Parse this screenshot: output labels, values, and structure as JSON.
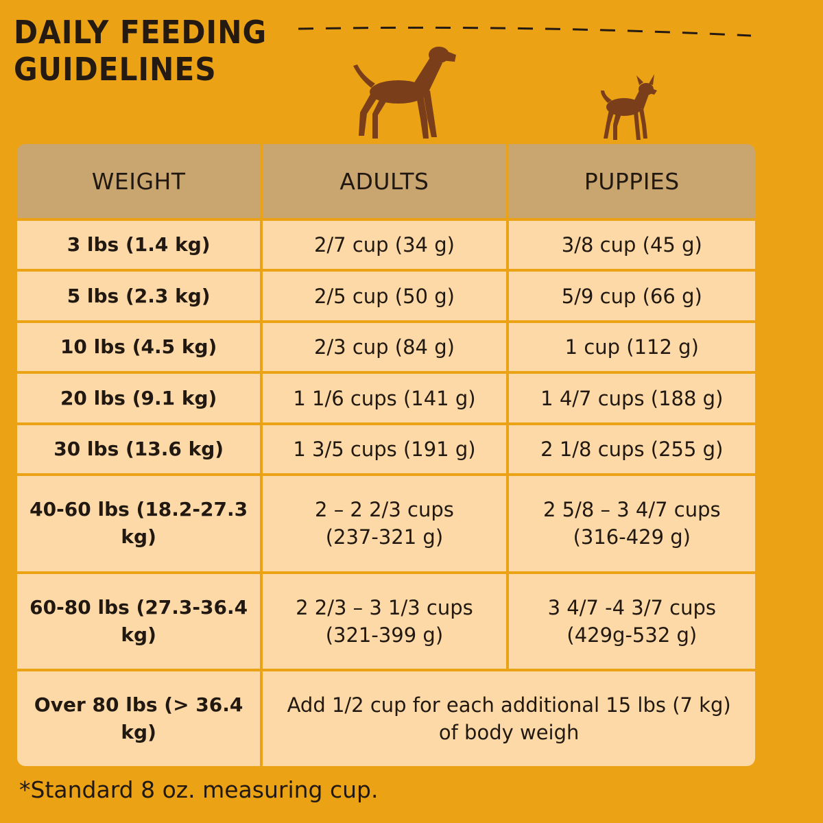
{
  "title_lines": [
    "DAILY FEEDING",
    "GUIDELINES"
  ],
  "icons": {
    "large_dog": "large-dog-silhouette-icon",
    "small_dog": "small-dog-silhouette-icon"
  },
  "colors": {
    "background": "#eba315",
    "header": "#c9a670",
    "cell": "#fcd9a6",
    "silhouette": "#7a3f1a",
    "text": "#211811"
  },
  "table": {
    "headers": {
      "weight": "WEIGHT",
      "adults": "ADULTS",
      "puppies": "PUPPIES"
    },
    "rows": [
      {
        "weight": "3 lbs (1.4 kg)",
        "adults": "2/7 cup (34 g)",
        "puppies": "3/8 cup (45 g)"
      },
      {
        "weight": "5 lbs (2.3 kg)",
        "adults": "2/5 cup (50 g)",
        "puppies": "5/9 cup (66 g)"
      },
      {
        "weight": "10 lbs (4.5 kg)",
        "adults": "2/3 cup (84 g)",
        "puppies": "1 cup (112 g)"
      },
      {
        "weight": "20 lbs (9.1 kg)",
        "adults": "1 1/6 cups (141 g)",
        "puppies": "1 4/7 cups (188 g)"
      },
      {
        "weight": "30 lbs (13.6 kg)",
        "adults": "1 3/5 cups (191 g)",
        "puppies": "2 1/8 cups (255 g)"
      },
      {
        "weight": "40-60 lbs (18.2-27.3 kg)",
        "adults": "2 – 2 2/3 cups\n(237-321 g)",
        "puppies": "2 5/8 – 3 4/7 cups\n(316-429 g)"
      },
      {
        "weight": "60-80 lbs (27.3-36.4 kg)",
        "adults": "2 2/3 – 3 1/3 cups\n(321-399 g)",
        "puppies": "3 4/7 -4 3/7 cups\n(429g-532 g)"
      }
    ],
    "last_row": {
      "weight": "Over 80 lbs (> 36.4 kg)",
      "note": "Add 1/2 cup for each additional 15 lbs (7 kg)\nof body weigh"
    }
  },
  "footnote": "*Standard 8 oz. measuring cup."
}
